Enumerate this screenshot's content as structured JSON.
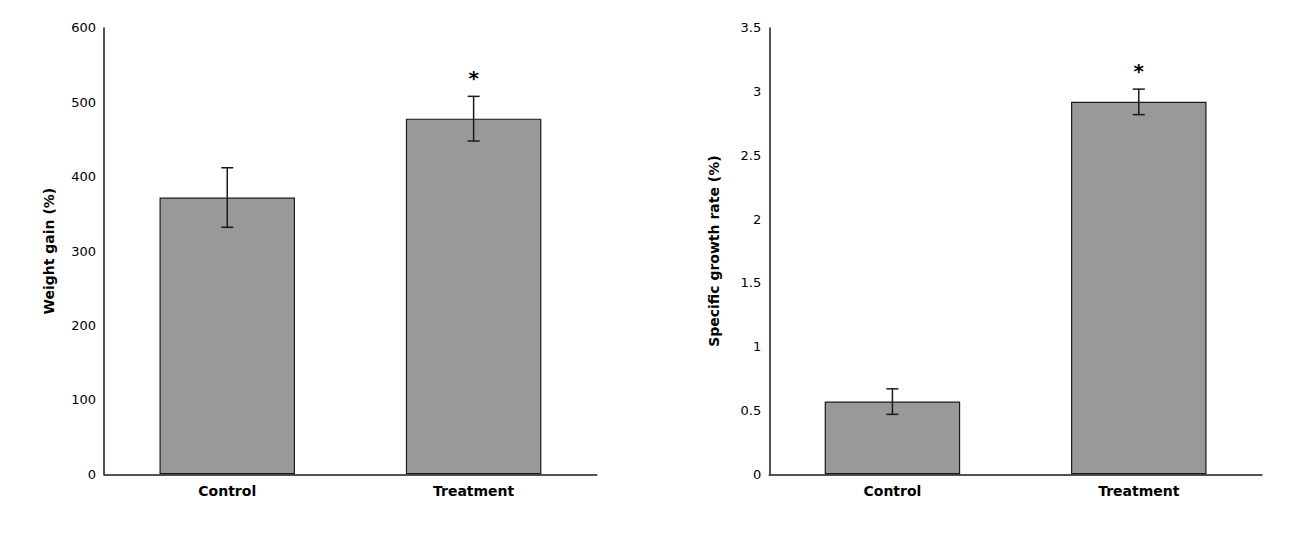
{
  "chart_data": [
    {
      "type": "bar",
      "categories": [
        "Control",
        "Treatment"
      ],
      "values": [
        372,
        478
      ],
      "errors": [
        40,
        30
      ],
      "ylabel": "Weight gain (%)",
      "ylim": [
        0,
        600
      ],
      "yticks": [
        0,
        100,
        200,
        300,
        400,
        500,
        600
      ],
      "color": "#999999",
      "grid": false,
      "annotations": [
        {
          "category": "Treatment",
          "text": "*"
        }
      ]
    },
    {
      "type": "bar",
      "categories": [
        "Control",
        "Treatment"
      ],
      "values": [
        0.57,
        2.92
      ],
      "errors": [
        0.1,
        0.1
      ],
      "ylabel": "Specific growth rate (%)",
      "ylim": [
        0,
        3.5
      ],
      "yticks": [
        0,
        0.5,
        1,
        1.5,
        2,
        2.5,
        3,
        3.5
      ],
      "color": "#999999",
      "grid": false,
      "annotations": [
        {
          "category": "Treatment",
          "text": "*"
        }
      ]
    }
  ]
}
